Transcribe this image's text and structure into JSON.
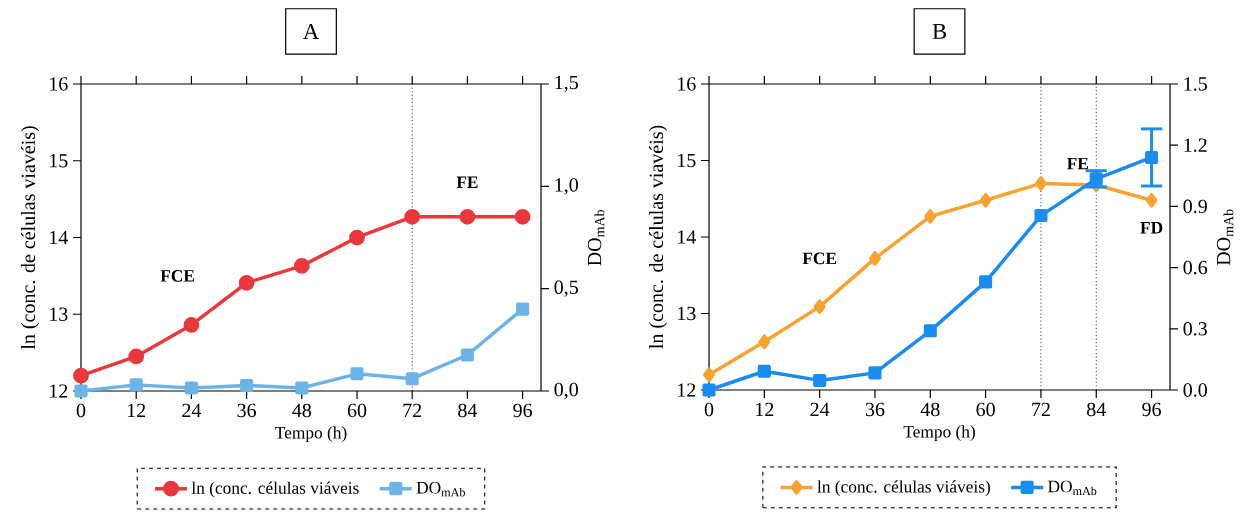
{
  "chart_data": [
    {
      "type": "line",
      "title": "A",
      "xlabel": "Tempo (h)",
      "ylabel": "ln (conc. de células viavéis)",
      "y2label": "DO$_{mAb}$",
      "x": [
        0,
        12,
        24,
        36,
        48,
        60,
        72,
        84,
        96
      ],
      "series": [
        {
          "name": "ln (conc. células viáveis",
          "color": "#e8383d",
          "marker": "circle",
          "values": [
            12.2,
            12.45,
            12.86,
            13.41,
            13.63,
            14.0,
            14.27,
            14.27,
            14.27
          ]
        },
        {
          "name": "DO$_{mAb}$",
          "color": "#6cb4e8",
          "marker": "square",
          "axis": "y2",
          "values": [
            0.0,
            0.03,
            0.015,
            0.027,
            0.015,
            0.084,
            0.06,
            0.176,
            0.4
          ]
        }
      ],
      "xlim": [
        0,
        100
      ],
      "xticks": [
        0,
        12,
        24,
        36,
        48,
        60,
        72,
        84,
        96
      ],
      "ylim": [
        12,
        16
      ],
      "yticks": [
        12,
        13,
        14,
        15,
        16
      ],
      "y2lim": [
        0,
        1.5
      ],
      "y2ticks": [
        {
          "value": 0,
          "label": "0,0"
        },
        {
          "value": 0.5,
          "label": "0,5"
        },
        {
          "value": 1.0,
          "label": "1,0"
        },
        {
          "value": 1.5,
          "label": "1,5"
        }
      ],
      "ref_lines": [
        {
          "axis": "x",
          "value": 72,
          "line_style": "dotted",
          "color": "#000000"
        }
      ],
      "annotations": [
        "FCE",
        "FE"
      ],
      "legend": "bottom"
    },
    {
      "type": "line",
      "title": "B",
      "xlabel": "Tempo (h)",
      "ylabel": "ln (conc. de células viavéis)",
      "y2label": "DO$_{mAb}$",
      "x": [
        0,
        12,
        24,
        36,
        48,
        60,
        72,
        84,
        96
      ],
      "series": [
        {
          "name": "ln (conc. células viáveis)",
          "color": "#f7a233",
          "marker": "diamond",
          "values": [
            12.2,
            12.63,
            13.09,
            13.72,
            14.27,
            14.48,
            14.7,
            14.68,
            14.48
          ]
        },
        {
          "name": "DO$_{mAb}$",
          "color": "#1a8cf0",
          "marker": "square",
          "axis": "y2",
          "values": [
            0.0,
            0.092,
            0.047,
            0.084,
            0.29,
            0.53,
            0.855,
            1.035,
            1.14
          ],
          "errors": [
            null,
            null,
            null,
            null,
            null,
            null,
            null,
            0.04,
            0.14
          ]
        }
      ],
      "xlim": [
        0,
        100
      ],
      "xticks": [
        0,
        12,
        24,
        36,
        48,
        60,
        72,
        84,
        96
      ],
      "ylim": [
        12,
        16
      ],
      "yticks": [
        12,
        13,
        14,
        15,
        16
      ],
      "y2lim": [
        0,
        1.5
      ],
      "y2ticks": [
        {
          "value": 0,
          "label": "0.0"
        },
        {
          "value": 0.3,
          "label": "0.3"
        },
        {
          "value": 0.6,
          "label": "0.6"
        },
        {
          "value": 0.9,
          "label": "0.9"
        },
        {
          "value": 1.2,
          "label": "1.2"
        },
        {
          "value": 1.5,
          "label": "1.5"
        }
      ],
      "ref_lines": [
        {
          "axis": "x",
          "value": 72,
          "line_style": "dotted",
          "color": "#000000"
        },
        {
          "axis": "x",
          "value": 84,
          "line_style": "dotted",
          "color": "#000000"
        }
      ],
      "annotations": [
        "FCE",
        "FE",
        "FD"
      ],
      "legend": "bottom"
    }
  ]
}
